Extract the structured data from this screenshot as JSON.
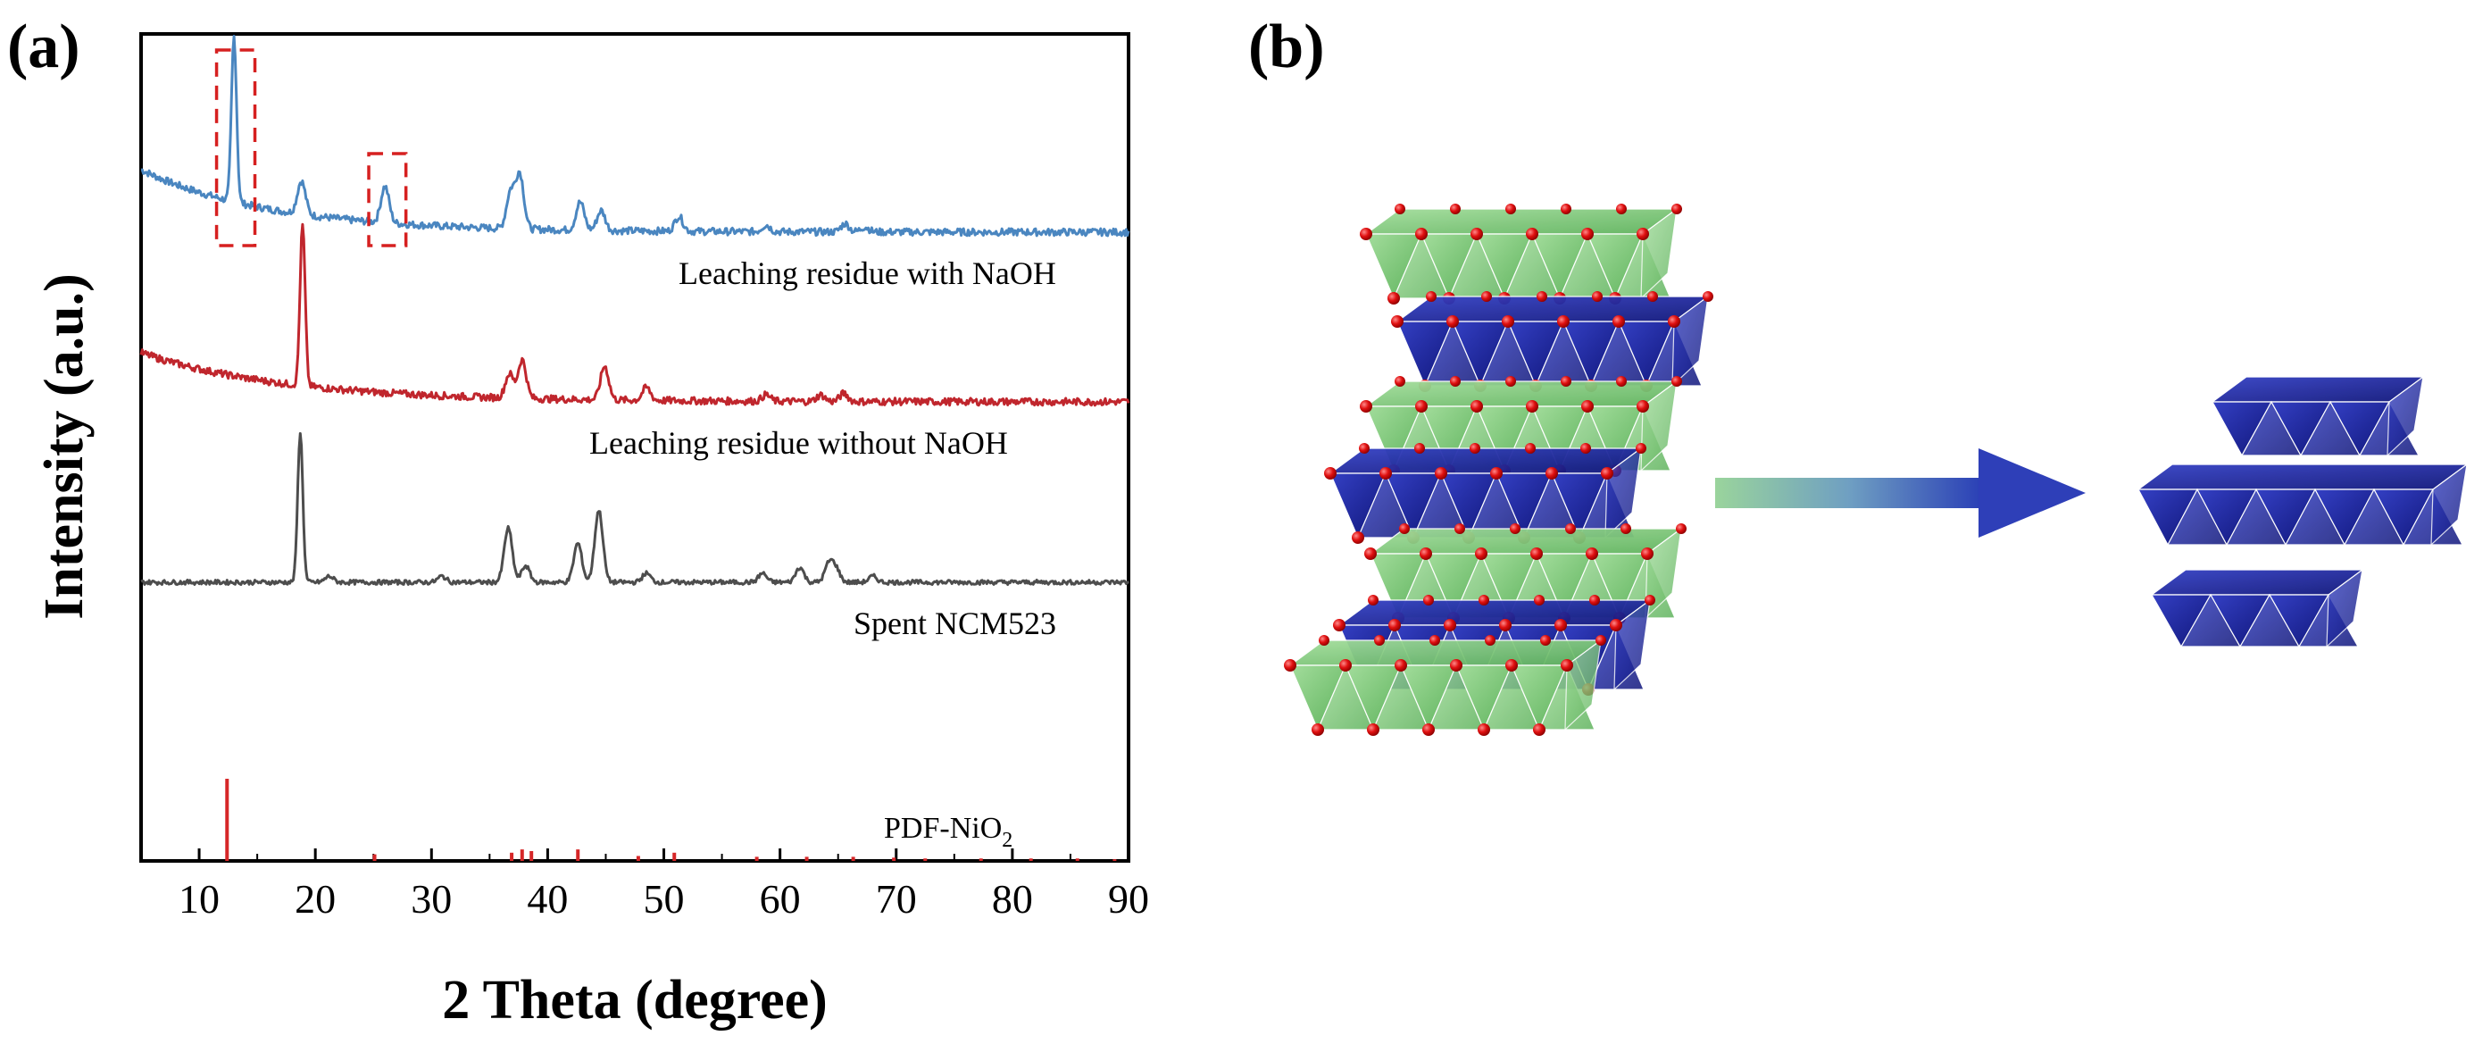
{
  "figure": {
    "panel_a_label": "(a)",
    "panel_b_label": "(b)"
  },
  "chart_data": {
    "type": "line",
    "xlabel": "2 Theta (degree)",
    "ylabel": "Intensity (a.u.)",
    "xlim": [
      5,
      90
    ],
    "xticks": [
      10,
      20,
      30,
      40,
      50,
      60,
      70,
      80,
      90
    ],
    "yticks_shown": false,
    "series": [
      {
        "name": "Leaching residue with NaOH",
        "color": "#4a86c0",
        "peaks": [
          {
            "x": 13.0,
            "intensity": 1.0
          },
          {
            "x": 18.8,
            "intensity": 0.2
          },
          {
            "x": 26.0,
            "intensity": 0.22
          },
          {
            "x": 36.8,
            "intensity": 0.22
          },
          {
            "x": 37.6,
            "intensity": 0.33
          },
          {
            "x": 42.8,
            "intensity": 0.17
          },
          {
            "x": 44.6,
            "intensity": 0.12
          },
          {
            "x": 51.3,
            "intensity": 0.09
          },
          {
            "x": 58.8,
            "intensity": 0.04
          },
          {
            "x": 65.6,
            "intensity": 0.05
          },
          {
            "x": 67.3,
            "intensity": 0.03
          }
        ]
      },
      {
        "name": "Leaching residue without NaOH",
        "color": "#c0262d",
        "peaks": [
          {
            "x": 18.9,
            "intensity": 1.0
          },
          {
            "x": 36.7,
            "intensity": 0.15
          },
          {
            "x": 37.8,
            "intensity": 0.24
          },
          {
            "x": 44.9,
            "intensity": 0.21
          },
          {
            "x": 48.5,
            "intensity": 0.08
          },
          {
            "x": 58.8,
            "intensity": 0.04
          },
          {
            "x": 63.5,
            "intensity": 0.04
          },
          {
            "x": 65.5,
            "intensity": 0.05
          }
        ]
      },
      {
        "name": "Spent NCM523",
        "color": "#4d4d4d",
        "peaks": [
          {
            "x": 18.7,
            "intensity": 1.0
          },
          {
            "x": 21.2,
            "intensity": 0.04
          },
          {
            "x": 30.9,
            "intensity": 0.04
          },
          {
            "x": 36.6,
            "intensity": 0.36
          },
          {
            "x": 38.1,
            "intensity": 0.11
          },
          {
            "x": 42.6,
            "intensity": 0.26
          },
          {
            "x": 44.4,
            "intensity": 0.48
          },
          {
            "x": 48.5,
            "intensity": 0.06
          },
          {
            "x": 58.5,
            "intensity": 0.06
          },
          {
            "x": 61.7,
            "intensity": 0.1
          },
          {
            "x": 64.2,
            "intensity": 0.12
          },
          {
            "x": 64.8,
            "intensity": 0.09
          },
          {
            "x": 68.0,
            "intensity": 0.04
          }
        ]
      }
    ],
    "reference": {
      "name_main": "PDF-NiO",
      "name_sub": "2",
      "color": "#d62728",
      "lines": [
        {
          "x": 12.4,
          "intensity": 1.0
        },
        {
          "x": 25.1,
          "intensity": 0.08
        },
        {
          "x": 36.9,
          "intensity": 0.1
        },
        {
          "x": 37.8,
          "intensity": 0.14
        },
        {
          "x": 38.6,
          "intensity": 0.12
        },
        {
          "x": 42.6,
          "intensity": 0.14
        },
        {
          "x": 47.8,
          "intensity": 0.06
        },
        {
          "x": 50.9,
          "intensity": 0.1
        },
        {
          "x": 58.0,
          "intensity": 0.05
        },
        {
          "x": 62.3,
          "intensity": 0.05
        },
        {
          "x": 66.3,
          "intensity": 0.05
        },
        {
          "x": 69.8,
          "intensity": 0.04
        },
        {
          "x": 72.5,
          "intensity": 0.03
        },
        {
          "x": 77.3,
          "intensity": 0.03
        },
        {
          "x": 81.6,
          "intensity": 0.03
        },
        {
          "x": 85.6,
          "intensity": 0.03
        },
        {
          "x": 88.8,
          "intensity": 0.02
        }
      ]
    },
    "highlight_boxes": [
      {
        "x_range": [
          11.5,
          14.8
        ],
        "series": "Leaching residue with NaOH",
        "style": "red dashed"
      },
      {
        "x_range": [
          24.6,
          27.8
        ],
        "series": "Leaching residue with NaOH",
        "style": "red dashed"
      }
    ]
  },
  "schematic": {
    "left_structure": "layered structure of alternating green and blue octahedral layers with red oxygen atoms",
    "arrow": "green-to-blue gradient arrow pointing right",
    "right_structure": "separated blue octahedral layers",
    "colors": {
      "green_layer": "#7cc97a",
      "blue_layer": "#1c2596",
      "oxygen": "#d01414"
    }
  }
}
